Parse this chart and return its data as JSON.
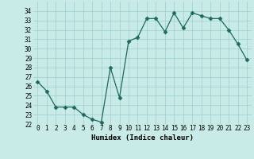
{
  "x": [
    0,
    1,
    2,
    3,
    4,
    5,
    6,
    7,
    8,
    9,
    10,
    11,
    12,
    13,
    14,
    15,
    16,
    17,
    18,
    19,
    20,
    21,
    22,
    23
  ],
  "y": [
    26.5,
    25.5,
    23.8,
    23.8,
    23.8,
    23.0,
    22.5,
    22.2,
    28.0,
    24.8,
    30.8,
    31.2,
    33.2,
    33.2,
    31.8,
    33.8,
    32.2,
    33.8,
    33.5,
    33.2,
    33.2,
    32.0,
    30.5,
    28.8
  ],
  "line_color": "#1a6b5a",
  "marker": "D",
  "marker_size": 2.5,
  "bg_color": "#c8ebe8",
  "grid_color": "#9ecfca",
  "xlabel": "Humidex (Indice chaleur)",
  "xlim": [
    -0.5,
    23.5
  ],
  "ylim": [
    22,
    35
  ],
  "yticks": [
    22,
    23,
    24,
    25,
    26,
    27,
    28,
    29,
    30,
    31,
    32,
    33,
    34
  ],
  "xticks": [
    0,
    1,
    2,
    3,
    4,
    5,
    6,
    7,
    8,
    9,
    10,
    11,
    12,
    13,
    14,
    15,
    16,
    17,
    18,
    19,
    20,
    21,
    22,
    23
  ],
  "label_fontsize": 6.5,
  "tick_fontsize": 5.5
}
